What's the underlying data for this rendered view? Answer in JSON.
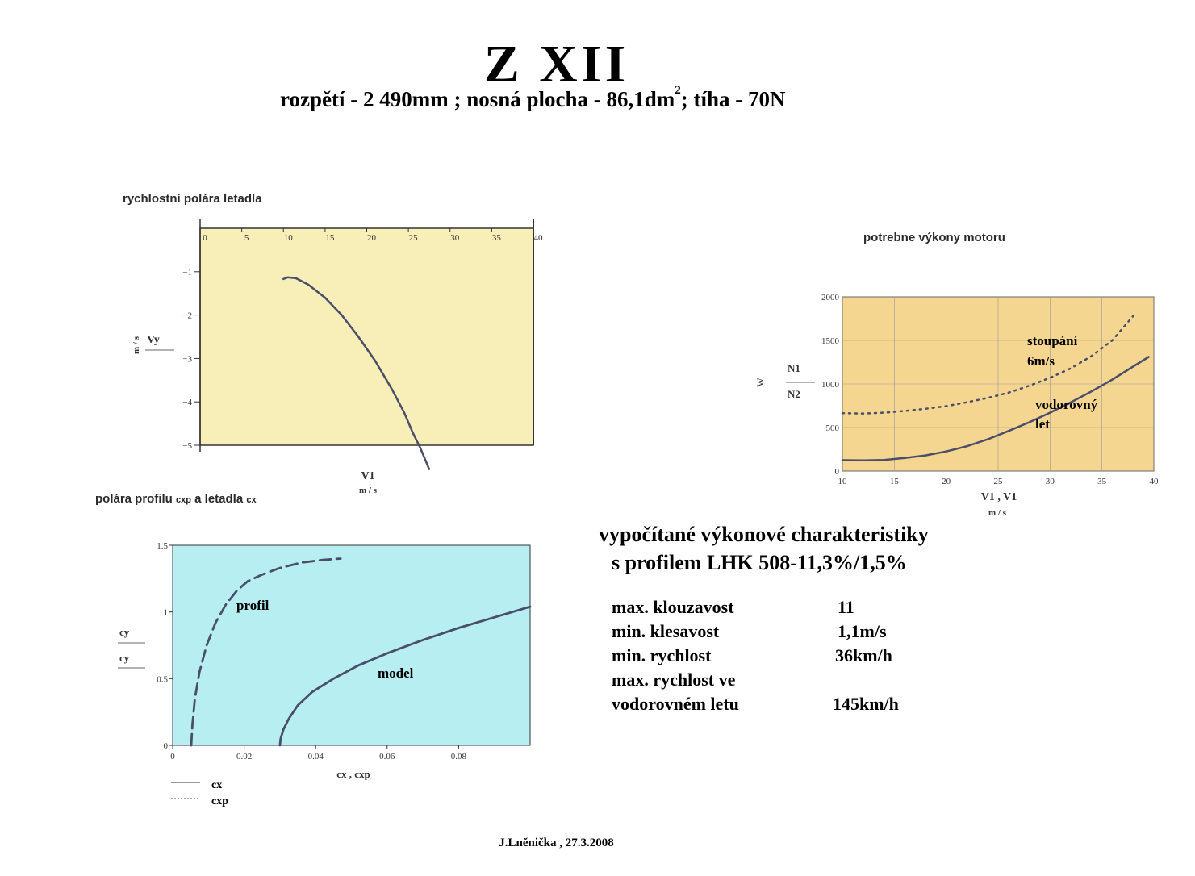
{
  "header": {
    "title": "Z  XII",
    "subtitle_main": "rozpětí - 2 490mm ; nosná plocha - 86,1dm",
    "subtitle_sup": "2",
    "subtitle_end": "; tíha - 70N"
  },
  "chart_data": [
    {
      "type": "line",
      "title": "rychlostní polára  letadla",
      "xlabel": "V1",
      "xunit": "m / s",
      "ylabel": "Vy",
      "yunit": "m / s",
      "xlim": [
        0,
        40
      ],
      "ylim": [
        -5,
        0
      ],
      "xticks": [
        "0",
        "5",
        "10",
        "15",
        "20",
        "25",
        "30",
        "35",
        "40"
      ],
      "yticks": [
        "−1",
        "−2",
        "−3",
        "−4",
        "−5"
      ],
      "colors": {
        "background": "#f8eeb8",
        "line": "#4a4e6a"
      },
      "series": [
        {
          "x": [
            10.0,
            10.5,
            11.5,
            13,
            15,
            17,
            19,
            21,
            23,
            24.5,
            25.5,
            26.4,
            27.5
          ],
          "y": [
            -1.17,
            -1.13,
            -1.15,
            -1.3,
            -1.6,
            -2.0,
            -2.5,
            -3.05,
            -3.7,
            -4.25,
            -4.7,
            -5.05,
            -5.55
          ]
        }
      ]
    },
    {
      "type": "line",
      "title": "potrebne výkony motoru",
      "xlabel": "V1 , V1",
      "xunit": "m / s",
      "ylabel": "W",
      "ylabel_num": "N1",
      "ylabel_den": "N2",
      "xlim": [
        10,
        40
      ],
      "ylim": [
        0,
        2000
      ],
      "xticks": [
        "10",
        "15",
        "20",
        "25",
        "30",
        "35",
        "40"
      ],
      "yticks": [
        "0",
        "500",
        "1000",
        "1500",
        "2000"
      ],
      "colors": {
        "background": "#f5d690",
        "line": "#4a4e6a"
      },
      "annotations": [
        "stoupání",
        "6m/s",
        "vodorovný",
        "let"
      ],
      "series": [
        {
          "name": "stoupání 6m/s",
          "style": "dotted",
          "x": [
            10,
            12,
            14,
            16,
            18,
            20,
            22,
            24,
            26,
            28,
            30,
            32,
            34,
            36,
            38
          ],
          "y": [
            665,
            660,
            670,
            690,
            715,
            745,
            790,
            840,
            900,
            980,
            1070,
            1180,
            1320,
            1500,
            1780
          ]
        },
        {
          "name": "vodorovný let",
          "style": "solid",
          "x": [
            10,
            12,
            14,
            16,
            18,
            20,
            22,
            24,
            26,
            28,
            30,
            32,
            34,
            36,
            38,
            39.5
          ],
          "y": [
            125,
            122,
            128,
            150,
            180,
            225,
            285,
            365,
            460,
            560,
            670,
            790,
            915,
            1050,
            1200,
            1310
          ]
        }
      ]
    },
    {
      "type": "line",
      "title": "polára profilu",
      "title_sub1": "cxp",
      "title_mid": "a letadla",
      "title_sub2": "cx",
      "xlabel": "cx , cxp",
      "ylabel_num": "cy",
      "ylabel_den": "cy",
      "xlim": [
        0,
        0.1
      ],
      "ylim": [
        0,
        1.5
      ],
      "xticks": [
        "0",
        "0.02",
        "0.04",
        "0.06",
        "0.08"
      ],
      "yticks": [
        "0",
        "0.5",
        "1",
        "1.5"
      ],
      "colors": {
        "background": "#b6eef2",
        "line": "#4a4e6a"
      },
      "annotations": [
        "profil",
        "model"
      ],
      "legend": [
        "cx",
        "cxp"
      ],
      "series": [
        {
          "name": "profil",
          "style": "dashed",
          "x": [
            0.0052,
            0.0055,
            0.0062,
            0.0075,
            0.0095,
            0.012,
            0.015,
            0.018,
            0.021,
            0.025,
            0.03,
            0.036,
            0.042,
            0.047
          ],
          "y": [
            0.0,
            0.15,
            0.35,
            0.55,
            0.75,
            0.92,
            1.06,
            1.16,
            1.23,
            1.28,
            1.33,
            1.37,
            1.39,
            1.4
          ]
        },
        {
          "name": "model",
          "style": "solid",
          "x": [
            0.03,
            0.0302,
            0.031,
            0.0325,
            0.035,
            0.039,
            0.045,
            0.052,
            0.06,
            0.07,
            0.08,
            0.09,
            0.1
          ],
          "y": [
            0.0,
            0.05,
            0.12,
            0.2,
            0.3,
            0.4,
            0.5,
            0.6,
            0.69,
            0.79,
            0.88,
            0.96,
            1.04
          ]
        }
      ]
    }
  ],
  "summary": {
    "heading_line1": "vypočítané výkonové charakteristiky",
    "heading_line2": "s profilem LHK 508-11,3%/1,5%",
    "specs": [
      {
        "label": "max. klouzavost",
        "value": "11"
      },
      {
        "label": "min. klesavost",
        "value": "1,1m/s"
      },
      {
        "label": "min. rychlost",
        "value": "36km/h"
      },
      {
        "label": "max. rychlost ve",
        "value": ""
      },
      {
        "label": "vodorovném letu",
        "value": "145km/h"
      }
    ]
  },
  "footer": {
    "author": "J.Lněnička , 27.3.2008"
  }
}
